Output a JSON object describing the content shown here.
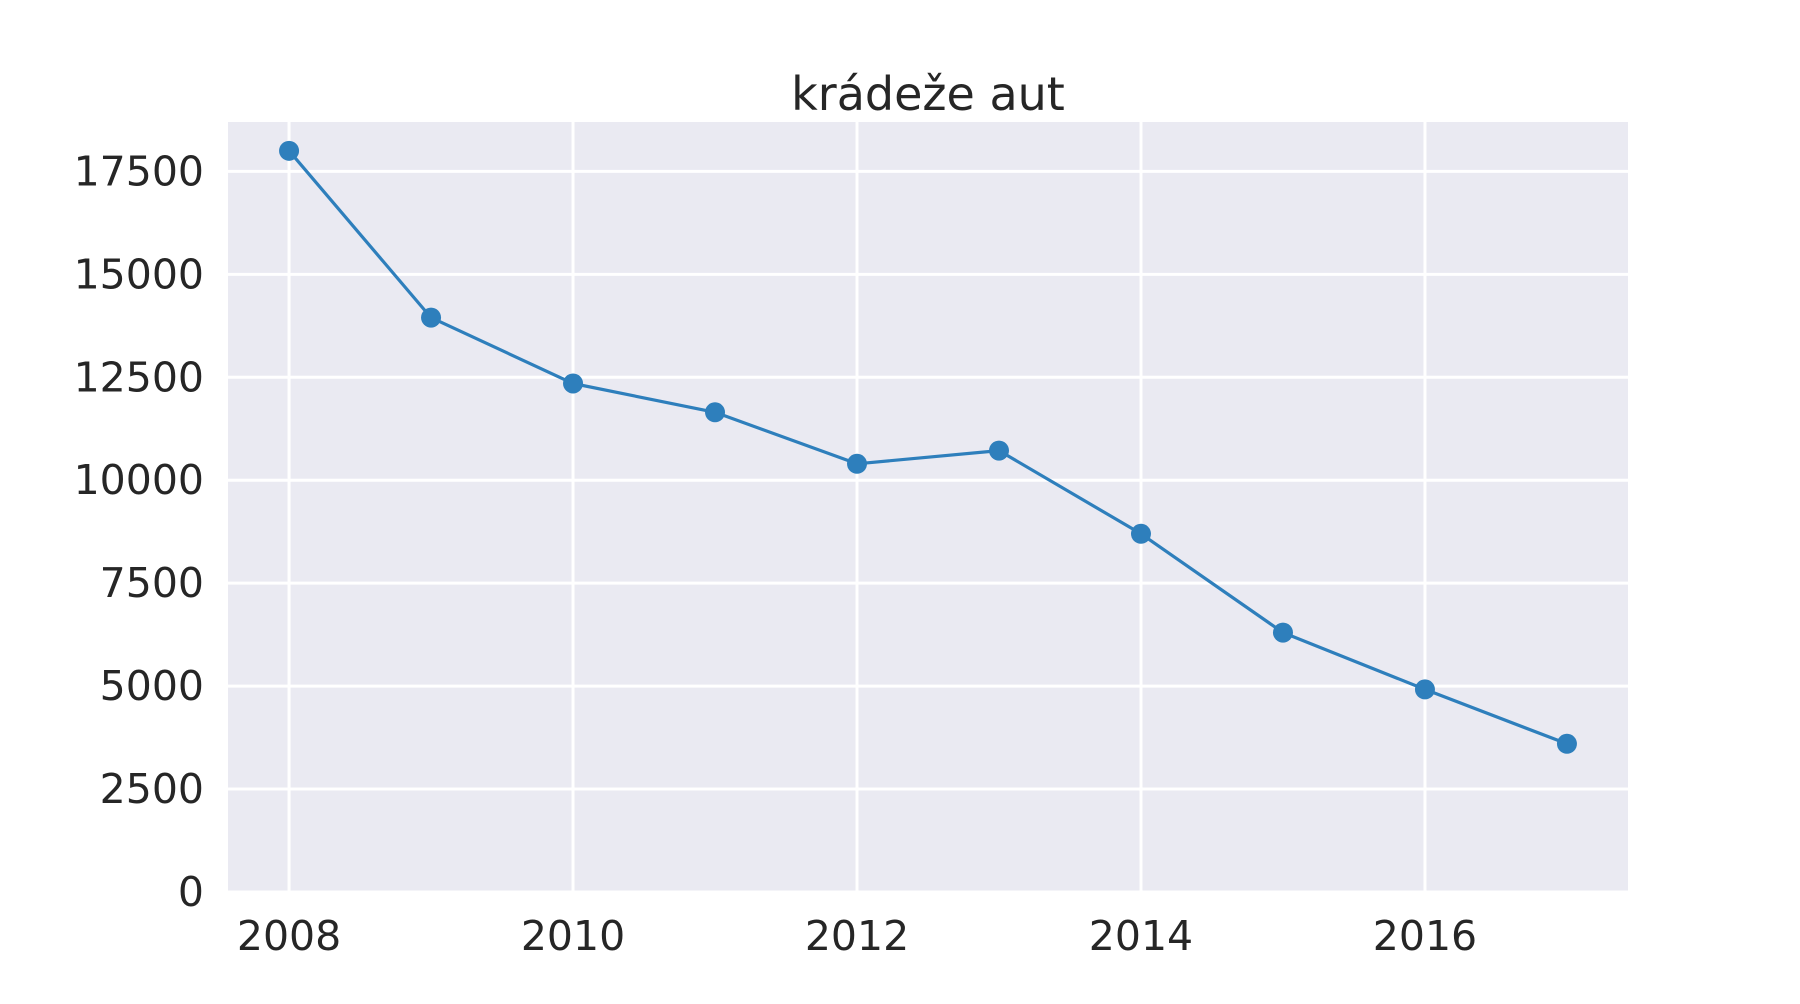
{
  "chart_data": {
    "type": "line",
    "title": "krádeže aut",
    "xlabel": "",
    "ylabel": "",
    "x": [
      2008,
      2009,
      2010,
      2011,
      2012,
      2013,
      2014,
      2015,
      2016,
      2017
    ],
    "series": [
      {
        "values": [
          18000,
          13950,
          12350,
          11650,
          10400,
          10720,
          8700,
          6300,
          4920,
          3600
        ],
        "color": "#2e7fbc"
      }
    ],
    "x_ticks": [
      "2008",
      "2010",
      "2012",
      "2014",
      "2016"
    ],
    "x_tick_values": [
      2008,
      2010,
      2012,
      2014,
      2016
    ],
    "y_ticks": [
      "0",
      "2500",
      "5000",
      "7500",
      "10000",
      "12500",
      "15000",
      "17500"
    ],
    "y_tick_values": [
      0,
      2500,
      5000,
      7500,
      10000,
      12500,
      15000,
      17500
    ],
    "xlim": [
      2007.57,
      2017.43
    ],
    "ylim": [
      0,
      18700
    ],
    "grid": true,
    "legend": "none",
    "colors": {
      "plot_background": "#eaeaf2",
      "grid": "#ffffff",
      "text": "#262626",
      "line": "#2e7fbc"
    }
  }
}
